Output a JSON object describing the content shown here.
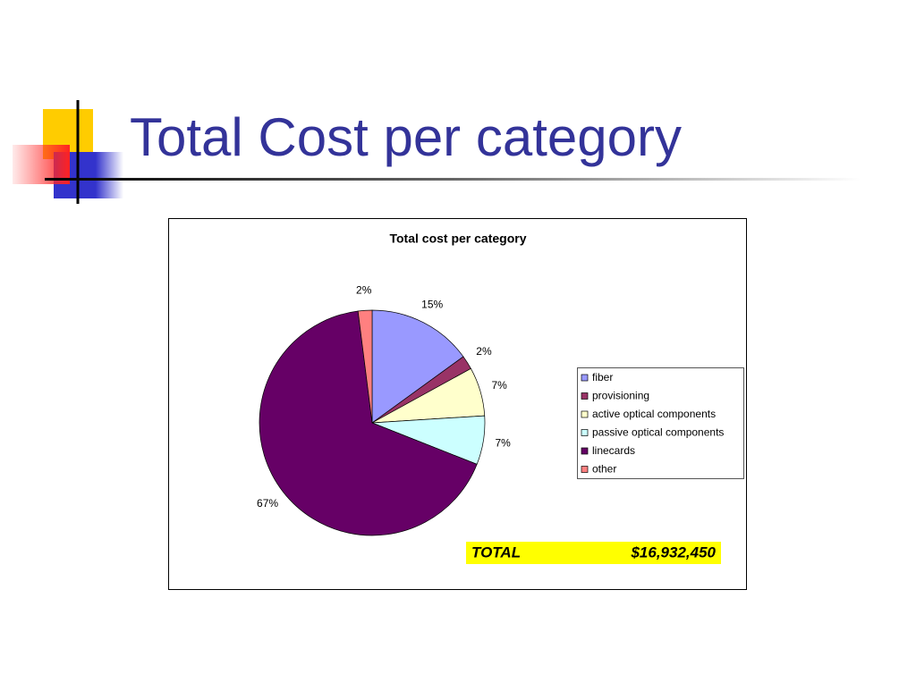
{
  "slide_title": "Total Cost per category",
  "chart_data": {
    "type": "pie",
    "title": "Total cost per category",
    "categories": [
      "fiber",
      "provisioning",
      "active optical components",
      "passive optical components",
      "linecards",
      "other"
    ],
    "values": [
      15,
      2,
      7,
      7,
      67,
      2
    ],
    "value_labels": [
      "15%",
      "2%",
      "7%",
      "7%",
      "67%",
      "2%"
    ],
    "colors": [
      "#9999ff",
      "#993366",
      "#ffffcc",
      "#ccffff",
      "#660066",
      "#ff8080"
    ],
    "legend": "right",
    "total": {
      "label": "TOTAL",
      "value": "$16,932,450"
    }
  }
}
